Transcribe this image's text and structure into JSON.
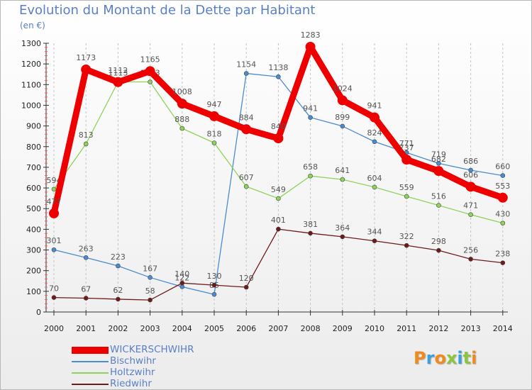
{
  "header": {
    "title": "Evolution du Montant de la Dette par Habitant",
    "unit": "(en €)"
  },
  "logo": {
    "text": "Proxiti",
    "colors": [
      "#f08a1c",
      "#3aa0dc",
      "#f08a1c",
      "#8cc63e",
      "#3aa0dc",
      "#8cc63e",
      "#f08a1c"
    ]
  },
  "chart_data": {
    "type": "line",
    "title": "Evolution du Montant de la Dette par Habitant",
    "ylabel": "(en €)",
    "xlabel": "",
    "x": [
      "2000",
      "2001",
      "2002",
      "2003",
      "2004",
      "2005",
      "2006",
      "2007",
      "2008",
      "2009",
      "2010",
      "2011",
      "2012",
      "2013",
      "2014"
    ],
    "ylim": [
      0,
      1300
    ],
    "yticks": [
      0,
      100,
      200,
      300,
      400,
      500,
      600,
      700,
      800,
      900,
      1000,
      1100,
      1200,
      1300
    ],
    "grid": "vertical dashed",
    "legend_position": "bottom-left",
    "series": [
      {
        "name": "WICKERSCHWIHR",
        "color": "#ee0000",
        "bold": true,
        "values": [
          477,
          1173,
          1112,
          1165,
          1008,
          947,
          884,
          840,
          1283,
          1024,
          941,
          737,
          682,
          606,
          553
        ]
      },
      {
        "name": "Bischwihr",
        "color": "#4a8cd0",
        "bold": false,
        "values": [
          301,
          263,
          223,
          167,
          122,
          85,
          1154,
          1138,
          941,
          899,
          824,
          771,
          719,
          686,
          660
        ]
      },
      {
        "name": "Holtzwihr",
        "color": "#8fd35a",
        "bold": false,
        "values": [
          594,
          813,
          1113,
          1113,
          888,
          818,
          607,
          549,
          658,
          641,
          604,
          559,
          516,
          471,
          430
        ]
      },
      {
        "name": "Riedwihr",
        "color": "#6e1a1a",
        "bold": false,
        "values": [
          70,
          67,
          62,
          58,
          140,
          130,
          120,
          401,
          381,
          364,
          344,
          322,
          298,
          256,
          238
        ]
      }
    ]
  }
}
